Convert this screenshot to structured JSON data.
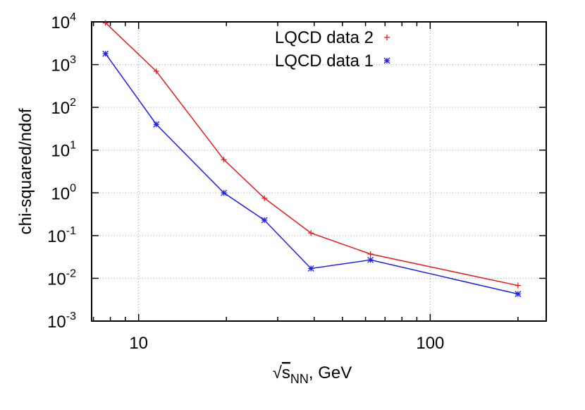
{
  "chart_data": {
    "type": "line",
    "title": "",
    "xlabel": {
      "root": "√",
      "main": "s",
      "sub": "NN",
      "suffix": ", GeV"
    },
    "ylabel": "chi-squared/ndof",
    "x_scale": "log",
    "y_scale": "log",
    "xlim": [
      6.9,
      250
    ],
    "ylim": [
      0.001,
      10000
    ],
    "x_ticks": [
      {
        "value": 10,
        "label": "10"
      },
      {
        "value": 100,
        "label": "100"
      }
    ],
    "y_ticks": [
      {
        "value": 0.001,
        "base": "10",
        "exp": "-3"
      },
      {
        "value": 0.01,
        "base": "10",
        "exp": "-2"
      },
      {
        "value": 0.1,
        "base": "10",
        "exp": "-1"
      },
      {
        "value": 1,
        "base": "10",
        "exp": "0"
      },
      {
        "value": 10,
        "base": "10",
        "exp": "1"
      },
      {
        "value": 100,
        "base": "10",
        "exp": "2"
      },
      {
        "value": 1000,
        "base": "10",
        "exp": "3"
      },
      {
        "value": 10000,
        "base": "10",
        "exp": "4"
      }
    ],
    "grid": true,
    "legend_position": "top-center",
    "series": [
      {
        "name": "LQCD data 2",
        "color": "#e41a1c",
        "marker": "plus",
        "x": [
          7.7,
          11.5,
          19.6,
          27,
          39,
          62.4,
          200
        ],
        "y": [
          9500,
          700,
          6,
          0.75,
          0.115,
          0.037,
          0.0068
        ]
      },
      {
        "name": "LQCD data 1",
        "color": "#1f1fe6",
        "marker": "star",
        "x": [
          7.7,
          11.5,
          19.6,
          27,
          39,
          62.4,
          200
        ],
        "y": [
          1800,
          40,
          1.0,
          0.23,
          0.017,
          0.027,
          0.0043
        ]
      }
    ]
  }
}
